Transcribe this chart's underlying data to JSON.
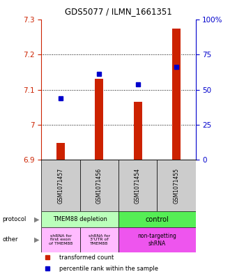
{
  "title": "GDS5077 / ILMN_1661351",
  "samples": [
    "GSM1071457",
    "GSM1071456",
    "GSM1071454",
    "GSM1071455"
  ],
  "red_values": [
    6.948,
    7.13,
    7.065,
    7.275
  ],
  "blue_values": [
    7.075,
    7.145,
    7.115,
    7.165
  ],
  "ylim_left": [
    6.9,
    7.3
  ],
  "ylim_right": [
    0,
    100
  ],
  "yticks_left": [
    6.9,
    7.0,
    7.1,
    7.2,
    7.3
  ],
  "ytick_labels_left": [
    "6.9",
    "7",
    "7.1",
    "7.2",
    "7.3"
  ],
  "yticks_right": [
    0,
    25,
    50,
    75,
    100
  ],
  "ytick_labels_right": [
    "0",
    "25",
    "50",
    "75",
    "100%"
  ],
  "red_color": "#cc2200",
  "blue_color": "#0000cc",
  "bar_bottom": 6.9,
  "protocol_label_left": "TMEM88 depletion",
  "protocol_label_right": "control",
  "protocol_color_left": "#bbffbb",
  "protocol_color_right": "#55ee55",
  "other_label_col1": "shRNA for\nfirst exon\nof TMEM88",
  "other_label_col2": "shRNA for\n3'UTR of\nTMEM88",
  "other_label_col34": "non-targetting\nshRNA",
  "other_color_left": "#ffbbff",
  "other_color_right": "#ee55ee",
  "legend_red": "transformed count",
  "legend_blue": "percentile rank within the sample",
  "bg_color": "#ffffff",
  "sample_bg": "#cccccc",
  "bar_width": 0.22
}
